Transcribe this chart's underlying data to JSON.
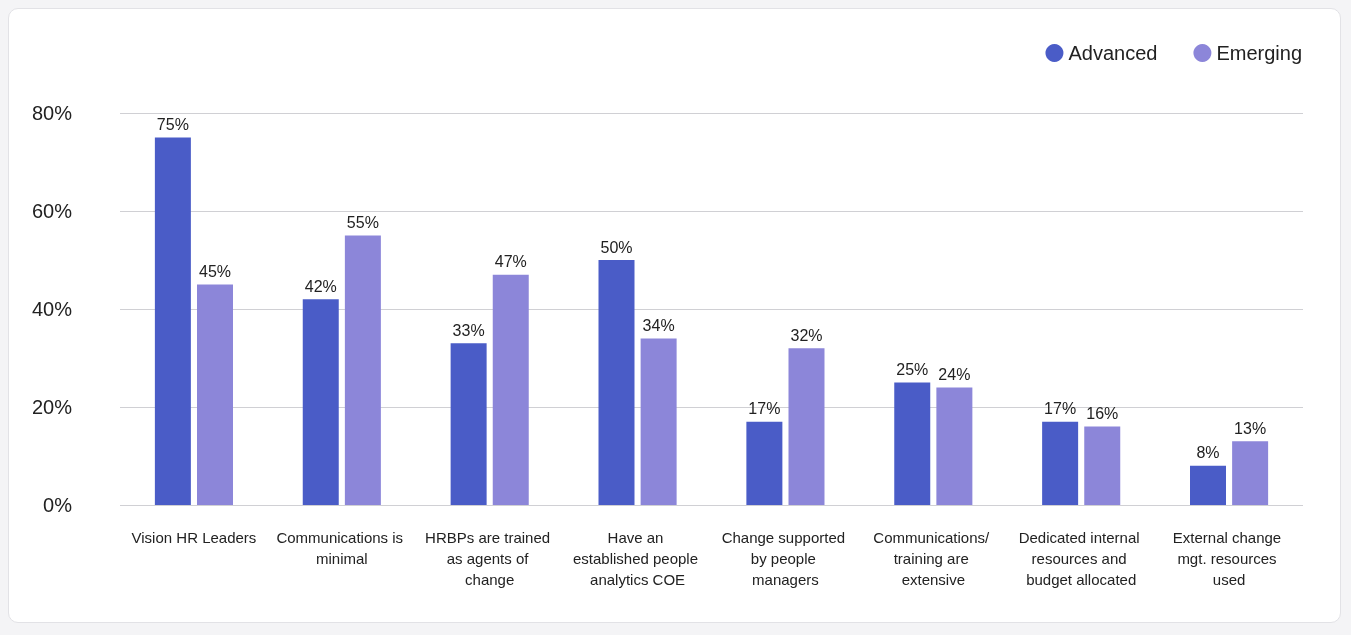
{
  "chart_data": {
    "type": "bar",
    "categories": [
      "Vision HR Leaders",
      "Communications is minimal",
      "HRBPs are trained as agents of change",
      "Have an established people analytics COE",
      "Change supported by people managers",
      "Communications/ training are extensive",
      "Dedicated internal resources and budget allocated",
      "External change mgt. resources used"
    ],
    "series": [
      {
        "name": "Advanced",
        "color": "#4a5cc7",
        "values": [
          75,
          42,
          33,
          50,
          17,
          25,
          17,
          8
        ],
        "value_labels": [
          "75%",
          "42%",
          "33%",
          "50%",
          "17%",
          "25%",
          "17%",
          "8%"
        ]
      },
      {
        "name": "Emerging",
        "color": "#8c86d9",
        "values": [
          45,
          55,
          47,
          34,
          32,
          24,
          16,
          13
        ],
        "value_labels": [
          "45%",
          "55%",
          "47%",
          "34%",
          "32%",
          "24%",
          "16%",
          "13%"
        ]
      }
    ],
    "ylim": [
      0,
      80
    ],
    "yticks": [
      {
        "value": 0,
        "label": "0%"
      },
      {
        "value": 20,
        "label": "20%"
      },
      {
        "value": 40,
        "label": "40%"
      },
      {
        "value": 60,
        "label": "60%"
      },
      {
        "value": 80,
        "label": "80%"
      }
    ],
    "grid": "y",
    "legend": "top right"
  }
}
